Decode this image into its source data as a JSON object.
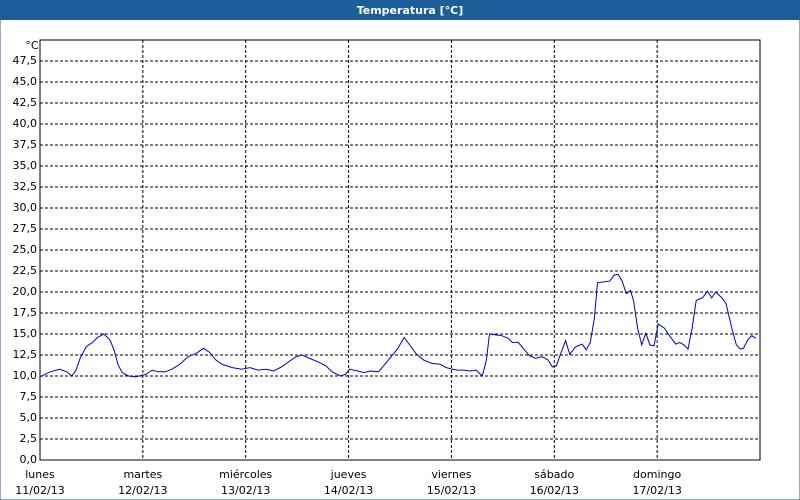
{
  "chart_data": {
    "type": "line",
    "title": "Temperatura [°C]",
    "y_label": "°C",
    "series": [
      {
        "name": "Temperatura",
        "color": "#0000c8",
        "x": [
          0,
          0.1,
          0.19,
          0.26,
          0.31,
          0.35,
          0.39,
          0.45,
          0.51,
          0.56,
          0.62,
          0.68,
          0.72,
          0.76,
          0.8,
          0.86,
          0.93,
          1.03,
          1.09,
          1.15,
          1.22,
          1.28,
          1.36,
          1.44,
          1.52,
          1.59,
          1.65,
          1.71,
          1.77,
          1.87,
          1.96,
          2.04,
          2.12,
          2.2,
          2.27,
          2.35,
          2.43,
          2.49,
          2.55,
          2.62,
          2.7,
          2.78,
          2.84,
          2.92,
          2.97,
          3.01,
          3.09,
          3.15,
          3.21,
          3.29,
          3.34,
          3.42,
          3.48,
          3.54,
          3.6,
          3.66,
          3.73,
          3.81,
          3.89,
          3.95,
          4.01,
          4.06,
          4.12,
          4.18,
          4.24,
          4.3,
          4.34,
          4.37,
          4.43,
          4.49,
          4.55,
          4.59,
          4.65,
          4.71,
          4.76,
          4.82,
          4.88,
          4.94,
          4.98,
          5.02,
          5.06,
          5.11,
          5.15,
          5.21,
          5.27,
          5.31,
          5.35,
          5.39,
          5.42,
          5.48,
          5.54,
          5.58,
          5.62,
          5.66,
          5.7,
          5.74,
          5.77,
          5.81,
          5.85,
          5.89,
          5.93,
          5.97,
          6.01,
          6.07,
          6.12,
          6.18,
          6.22,
          6.26,
          6.3,
          6.34,
          6.38,
          6.44,
          6.49,
          6.53,
          6.57,
          6.63,
          6.67,
          6.73,
          6.77,
          6.81,
          6.84,
          6.88,
          6.92,
          6.96
        ],
        "values": [
          9.9,
          10.5,
          10.8,
          10.5,
          10,
          10.7,
          12.1,
          13.5,
          14,
          14.6,
          15,
          14.3,
          13.1,
          11.3,
          10.4,
          10,
          9.9,
          10.2,
          10.7,
          10.5,
          10.5,
          10.8,
          11.4,
          12.3,
          12.7,
          13.3,
          12.8,
          11.9,
          11.4,
          11,
          10.8,
          11,
          10.7,
          10.8,
          10.6,
          11.1,
          11.8,
          12.3,
          12.5,
          12.1,
          11.7,
          11.2,
          10.5,
          10,
          10.2,
          10.8,
          10.6,
          10.4,
          10.6,
          10.5,
          11.2,
          12.4,
          13.3,
          14.6,
          13.6,
          12.6,
          11.9,
          11.5,
          11.4,
          11,
          10.8,
          10.7,
          10.7,
          10.6,
          10.7,
          10,
          11.9,
          15,
          14.9,
          14.8,
          14.5,
          14,
          14,
          13.1,
          12.4,
          12.1,
          12.3,
          11.9,
          11.1,
          11.2,
          12.6,
          14.2,
          12.6,
          13.5,
          13.8,
          13.1,
          14,
          16.9,
          21.1,
          21.2,
          21.3,
          22,
          22.1,
          21.3,
          19.8,
          20.2,
          19,
          15.7,
          13.7,
          15.1,
          13.7,
          13.6,
          16.2,
          15.7,
          14.8,
          13.8,
          14,
          13.7,
          13.2,
          15.7,
          19,
          19.3,
          20.1,
          19.3,
          20,
          19.3,
          18.6,
          15.5,
          13.7,
          13.2,
          13.3,
          14.3,
          14.8,
          14.5
        ]
      }
    ],
    "xlim": [
      0,
      7
    ],
    "xticks": [
      {
        "value": 0,
        "label": [
          "lunes",
          "11/02/13"
        ]
      },
      {
        "value": 1,
        "label": [
          "martes",
          "12/02/13"
        ]
      },
      {
        "value": 2,
        "label": [
          "miércoles",
          "13/02/13"
        ]
      },
      {
        "value": 3,
        "label": [
          "jueves",
          "14/02/13"
        ]
      },
      {
        "value": 4,
        "label": [
          "viernes",
          "15/02/13"
        ]
      },
      {
        "value": 5,
        "label": [
          "sábado",
          "16/02/13"
        ]
      },
      {
        "value": 6,
        "label": [
          "domingo",
          "17/02/13"
        ]
      }
    ],
    "ylim": [
      0,
      50
    ],
    "yticks": [
      {
        "value": 0,
        "label": "0,0"
      },
      {
        "value": 2.5,
        "label": "2,5"
      },
      {
        "value": 5,
        "label": "5,0"
      },
      {
        "value": 7.5,
        "label": "7,5"
      },
      {
        "value": 10,
        "label": "10,0"
      },
      {
        "value": 12.5,
        "label": "12,5"
      },
      {
        "value": 15,
        "label": "15,0"
      },
      {
        "value": 17.5,
        "label": "17,5"
      },
      {
        "value": 20,
        "label": "20,0"
      },
      {
        "value": 22.5,
        "label": "22,5"
      },
      {
        "value": 25,
        "label": "25,0"
      },
      {
        "value": 27.5,
        "label": "27,5"
      },
      {
        "value": 30,
        "label": "30,0"
      },
      {
        "value": 32.5,
        "label": "32,5"
      },
      {
        "value": 35,
        "label": "35,0"
      },
      {
        "value": 37.5,
        "label": "37,5"
      },
      {
        "value": 40,
        "label": "40,0"
      },
      {
        "value": 42.5,
        "label": "42,5"
      },
      {
        "value": 45,
        "label": "45,0"
      },
      {
        "value": 47.5,
        "label": "47,5"
      }
    ],
    "grid": true
  }
}
